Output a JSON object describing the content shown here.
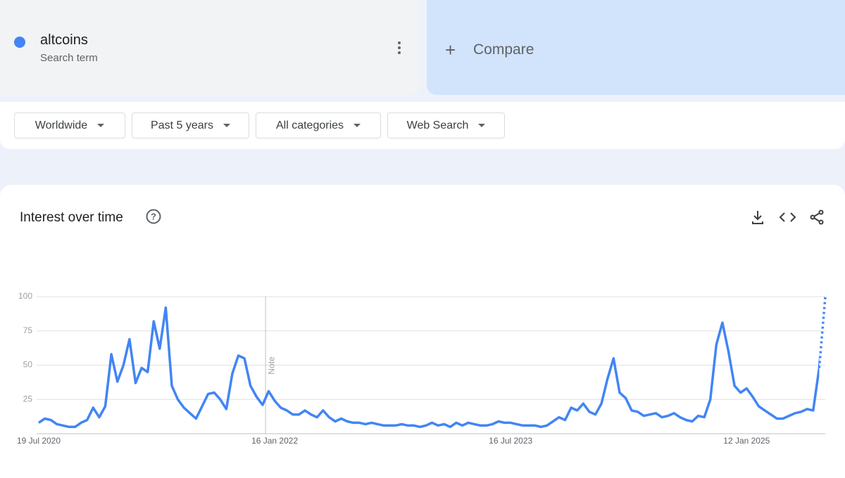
{
  "header": {
    "search_term_type": "Search term",
    "compare": "Compare"
  },
  "filters": [
    "Worldwide",
    "Past 5 years",
    "All categories",
    "Web Search"
  ],
  "chart_data": {
    "type": "line",
    "title": "Interest over time",
    "categories": [
      "19 Jul 2020",
      null,
      null,
      null,
      null,
      null,
      null,
      null,
      null,
      null,
      null,
      null,
      null,
      null,
      null,
      null,
      null,
      null,
      null,
      null,
      null,
      null,
      null,
      null,
      null,
      null,
      null,
      null,
      null,
      null,
      null,
      null,
      null,
      null,
      null,
      null,
      null,
      null,
      null,
      "16 Jan 2022",
      null,
      null,
      null,
      null,
      null,
      null,
      null,
      null,
      null,
      null,
      null,
      null,
      null,
      null,
      null,
      null,
      null,
      null,
      null,
      null,
      null,
      null,
      null,
      null,
      null,
      null,
      null,
      null,
      null,
      null,
      null,
      null,
      null,
      null,
      null,
      null,
      null,
      null,
      "16 Jul 2023",
      null,
      null,
      null,
      null,
      null,
      null,
      null,
      null,
      null,
      null,
      null,
      null,
      null,
      null,
      null,
      null,
      null,
      null,
      null,
      null,
      null,
      null,
      null,
      null,
      null,
      null,
      null,
      null,
      null,
      null,
      null,
      null,
      null,
      null,
      null,
      null,
      null,
      null,
      "12 Jan 2025",
      null,
      null,
      null,
      null,
      null,
      null,
      null,
      null,
      null,
      null,
      null,
      null,
      null
    ],
    "series": [
      {
        "name": "altcoins",
        "color": "#4285f4",
        "values": [
          8,
          11,
          10,
          7,
          6,
          5,
          5,
          8,
          10,
          19,
          12,
          20,
          58,
          38,
          50,
          69,
          37,
          48,
          45,
          82,
          62,
          92,
          35,
          25,
          19,
          15,
          11,
          20,
          29,
          30,
          25,
          18,
          44,
          57,
          55,
          35,
          27,
          21,
          31,
          24,
          19,
          17,
          14,
          14,
          17,
          14,
          12,
          17,
          12,
          9,
          11,
          9,
          8,
          8,
          7,
          8,
          7,
          6,
          6,
          6,
          7,
          6,
          6,
          5,
          6,
          8,
          6,
          7,
          5,
          8,
          6,
          8,
          7,
          6,
          6,
          7,
          9,
          8,
          8,
          7,
          6,
          6,
          6,
          5,
          6,
          9,
          12,
          10,
          19,
          17,
          22,
          16,
          14,
          22,
          40,
          55,
          30,
          26,
          17,
          16,
          13,
          14,
          15,
          12,
          13,
          15,
          12,
          10,
          9,
          13,
          12,
          25,
          65,
          81,
          60,
          35,
          30,
          33,
          27,
          20,
          17,
          14,
          11,
          11,
          13,
          15,
          16,
          18,
          17,
          48,
          100
        ]
      }
    ],
    "ylim": [
      0,
      100
    ],
    "yticks": [
      25,
      50,
      75,
      100
    ],
    "grid": true,
    "annotations": [
      {
        "text": "Note",
        "at": "16 Jan 2022"
      }
    ]
  }
}
